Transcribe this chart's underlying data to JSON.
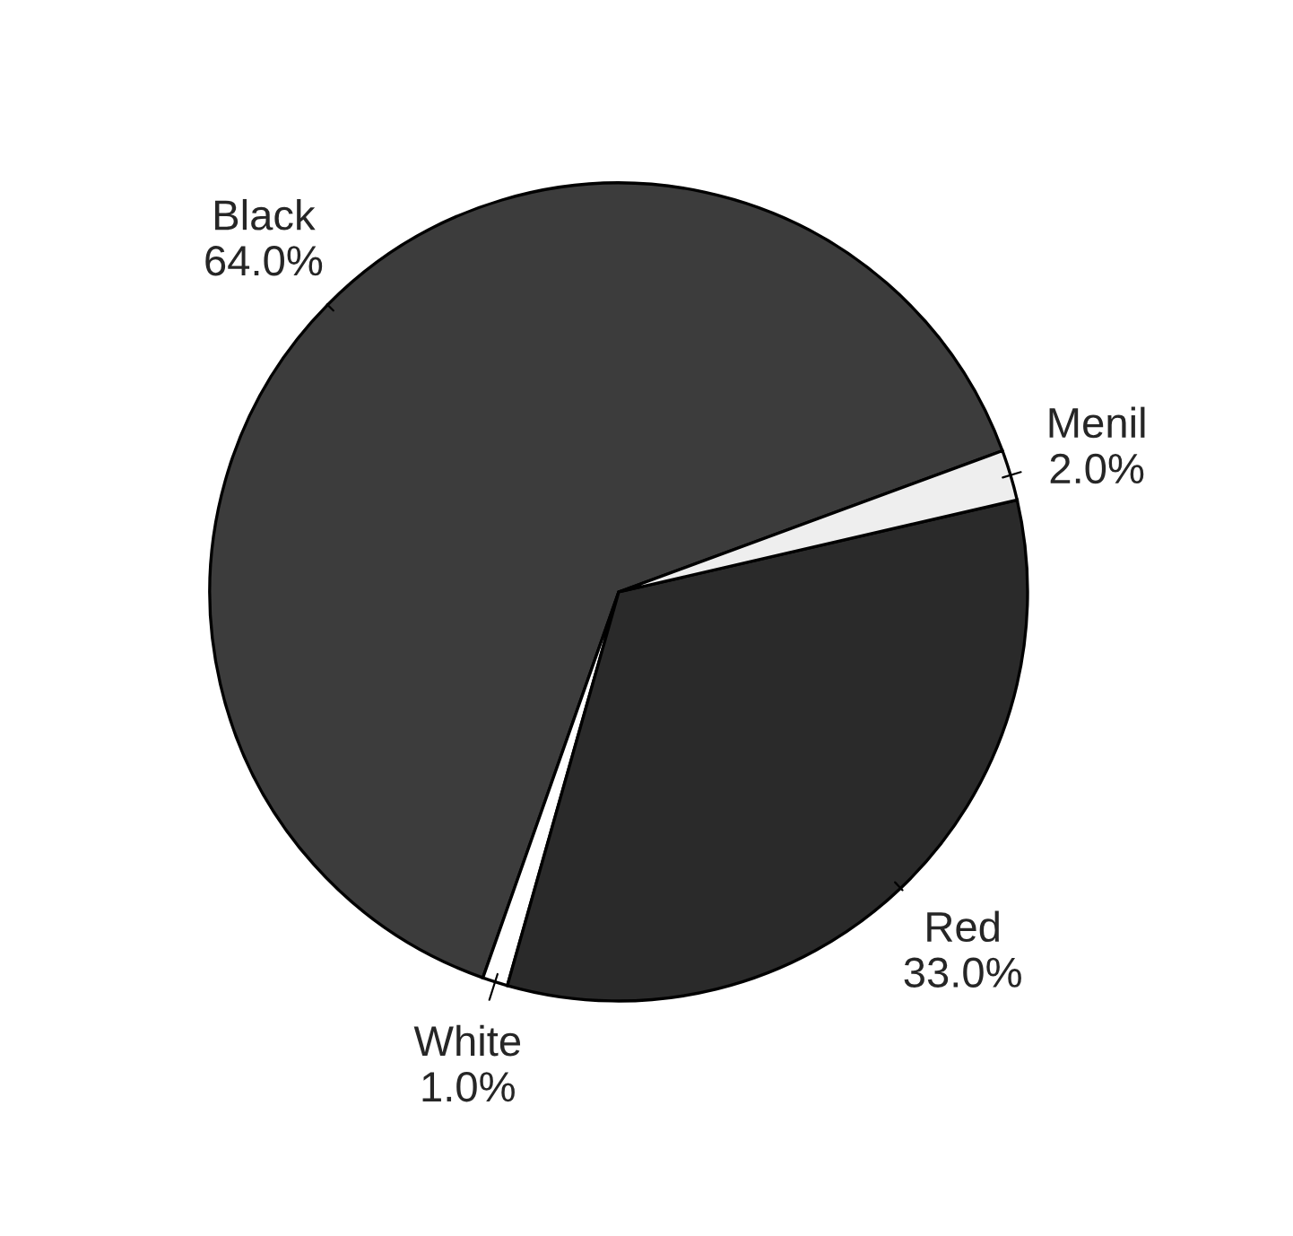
{
  "chart_data": {
    "type": "pie",
    "categories": [
      "Black",
      "White",
      "Red",
      "Menil"
    ],
    "values": [
      64.0,
      1.0,
      33.0,
      2.0
    ],
    "value_labels": [
      "64.0%",
      "1.0%",
      "33.0%",
      "2.0%"
    ],
    "colors": [
      "#3c3c3c",
      "#ffffff",
      "#2a2a2a",
      "#eeeeee"
    ]
  }
}
